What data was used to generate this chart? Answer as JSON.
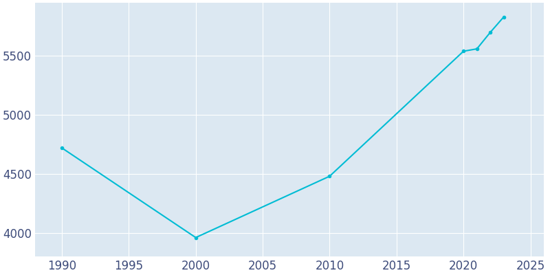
{
  "years": [
    1990,
    2000,
    2010,
    2020,
    2021,
    2022,
    2023
  ],
  "population": [
    4720,
    3960,
    4480,
    5540,
    5560,
    5700,
    5830
  ],
  "line_color": "#00BCD4",
  "marker_style": "o",
  "marker_size": 3,
  "line_width": 1.5,
  "plot_bg_color": "#dce8f2",
  "fig_bg_color": "#ffffff",
  "grid_color": "#ffffff",
  "xlim": [
    1988,
    2026
  ],
  "ylim": [
    3800,
    5950
  ],
  "yticks": [
    4000,
    4500,
    5000,
    5500
  ],
  "xticks": [
    1990,
    1995,
    2000,
    2005,
    2010,
    2015,
    2020,
    2025
  ],
  "tick_color": "#3d4b7a",
  "tick_fontsize": 12
}
